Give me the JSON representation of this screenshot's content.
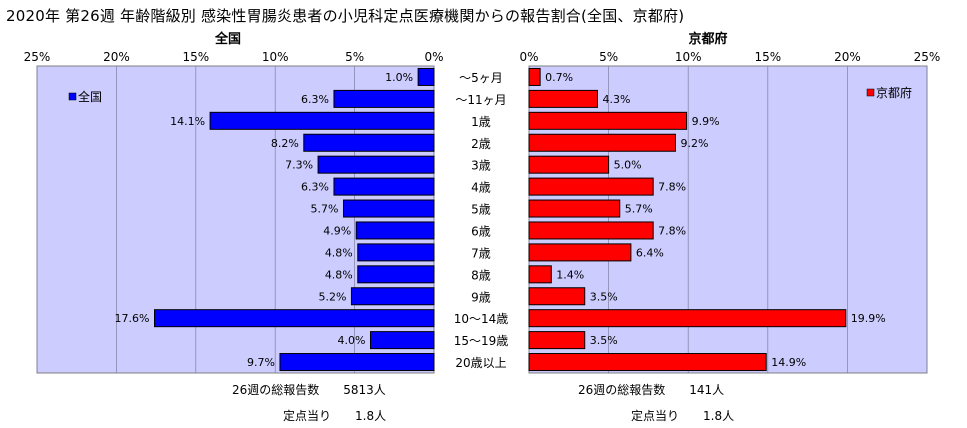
{
  "title": "2020年 第26週 年齢階級別 感染性胃腸炎患者の小児科定点医療機関からの報告割合(全国、京都府)",
  "colors": {
    "national": "#0000ff",
    "kyoto": "#ff0000",
    "plot_bg": "#ccccff"
  },
  "chart_data": [
    {
      "type": "bar",
      "orientation": "horizontal",
      "title": "全国",
      "direction": "right-to-left",
      "legend": "top-left",
      "grid": true,
      "xlim": [
        0,
        25
      ],
      "ticks": [
        "0%",
        "5%",
        "10%",
        "15%",
        "20%",
        "25%"
      ],
      "tick_values": [
        0,
        5,
        10,
        15,
        20,
        25
      ],
      "categories": [
        "～5ヶ月",
        "～11ヶ月",
        "1歳",
        "2歳",
        "3歳",
        "4歳",
        "5歳",
        "6歳",
        "7歳",
        "8歳",
        "9歳",
        "10～14歳",
        "15～19歳",
        "20歳以上"
      ],
      "series": [
        {
          "name": "全国",
          "values": [
            1.0,
            6.3,
            14.1,
            8.2,
            7.3,
            6.3,
            5.7,
            4.9,
            4.8,
            4.8,
            5.2,
            17.6,
            4.0,
            9.7
          ]
        }
      ],
      "labels": [
        "1.0%",
        "6.3%",
        "14.1%",
        "8.2%",
        "7.3%",
        "6.3%",
        "5.7%",
        "4.9%",
        "4.8%",
        "4.8%",
        "5.2%",
        "17.6%",
        "4.0%",
        "9.7%"
      ]
    },
    {
      "type": "bar",
      "orientation": "horizontal",
      "title": "京都府",
      "direction": "left-to-right",
      "legend": "top-right",
      "grid": true,
      "xlim": [
        0,
        25
      ],
      "ticks": [
        "0%",
        "5%",
        "10%",
        "15%",
        "20%",
        "25%"
      ],
      "tick_values": [
        0,
        5,
        10,
        15,
        20,
        25
      ],
      "categories": [
        "～5ヶ月",
        "～11ヶ月",
        "1歳",
        "2歳",
        "3歳",
        "4歳",
        "5歳",
        "6歳",
        "7歳",
        "8歳",
        "9歳",
        "10～14歳",
        "15～19歳",
        "20歳以上"
      ],
      "series": [
        {
          "name": "京都府",
          "values": [
            0.7,
            4.3,
            9.9,
            9.2,
            5.0,
            7.8,
            5.7,
            7.8,
            6.4,
            1.4,
            3.5,
            19.9,
            3.5,
            14.9
          ]
        }
      ],
      "labels": [
        "0.7%",
        "4.3%",
        "9.9%",
        "9.2%",
        "5.0%",
        "7.8%",
        "5.7%",
        "7.8%",
        "6.4%",
        "1.4%",
        "3.5%",
        "19.9%",
        "3.5%",
        "14.9%"
      ]
    }
  ],
  "footer": {
    "national_total": "26週の総報告数　　5813人",
    "national_per_site": "定点当り　　1.8人",
    "kyoto_total": "26週の総報告数　　141人",
    "kyoto_per_site": "定点当り　　1.8人"
  }
}
